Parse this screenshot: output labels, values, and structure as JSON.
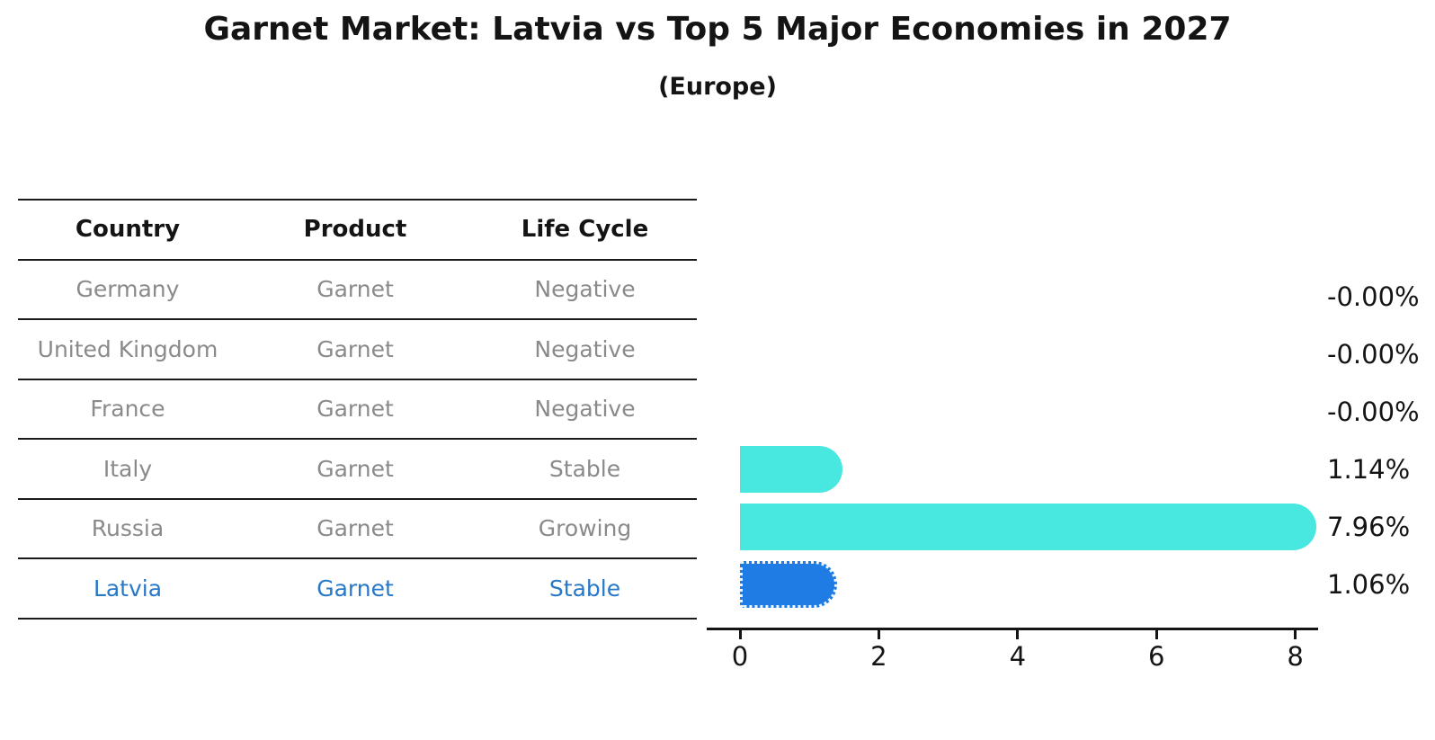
{
  "title": "Garnet Market: Latvia vs Top 5 Major Economies in 2027",
  "subtitle": "(Europe)",
  "table": {
    "headers": [
      "Country",
      "Product",
      "Life Cycle"
    ],
    "rows": [
      {
        "country": "Germany",
        "product": "Garnet",
        "life_cycle": "Negative"
      },
      {
        "country": "United Kingdom",
        "product": "Garnet",
        "life_cycle": "Negative"
      },
      {
        "country": "France",
        "product": "Garnet",
        "life_cycle": "Negative"
      },
      {
        "country": "Italy",
        "product": "Garnet",
        "life_cycle": "Stable"
      },
      {
        "country": "Russia",
        "product": "Garnet",
        "life_cycle": "Growing"
      },
      {
        "country": "Latvia",
        "product": "Garnet",
        "life_cycle": "Stable"
      }
    ]
  },
  "chart_data": {
    "type": "bar",
    "orientation": "horizontal",
    "title": "Garnet Market: Latvia vs Top 5 Major Economies in 2027",
    "subtitle": "(Europe)",
    "categories": [
      "Germany",
      "United Kingdom",
      "France",
      "Italy",
      "Russia",
      "Latvia"
    ],
    "values": [
      -0.0,
      -0.0,
      -0.0,
      1.14,
      7.96,
      1.06
    ],
    "value_labels": [
      "-0.00%",
      "-0.00%",
      "-0.00%",
      "1.14%",
      "7.96%",
      "1.06%"
    ],
    "x_ticks": [
      0,
      2,
      4,
      6,
      8
    ],
    "x_tick_labels": [
      "0",
      "2",
      "4",
      "6",
      "8"
    ],
    "xlim": [
      0,
      8.4
    ],
    "grid": false,
    "legend": "none",
    "bar_color_default": "#48e8e0",
    "bar_color_highlight": "#1e7ce4",
    "highlight_category": "Latvia"
  },
  "colors": {
    "text": "#141414",
    "muted_text": "#8a8a8a",
    "highlight_text": "#2878c8",
    "table_line": "#1a1a1a",
    "axis": "#141414",
    "bar_cyan": "#48e8e0",
    "bar_blue": "#1e7ce4"
  }
}
